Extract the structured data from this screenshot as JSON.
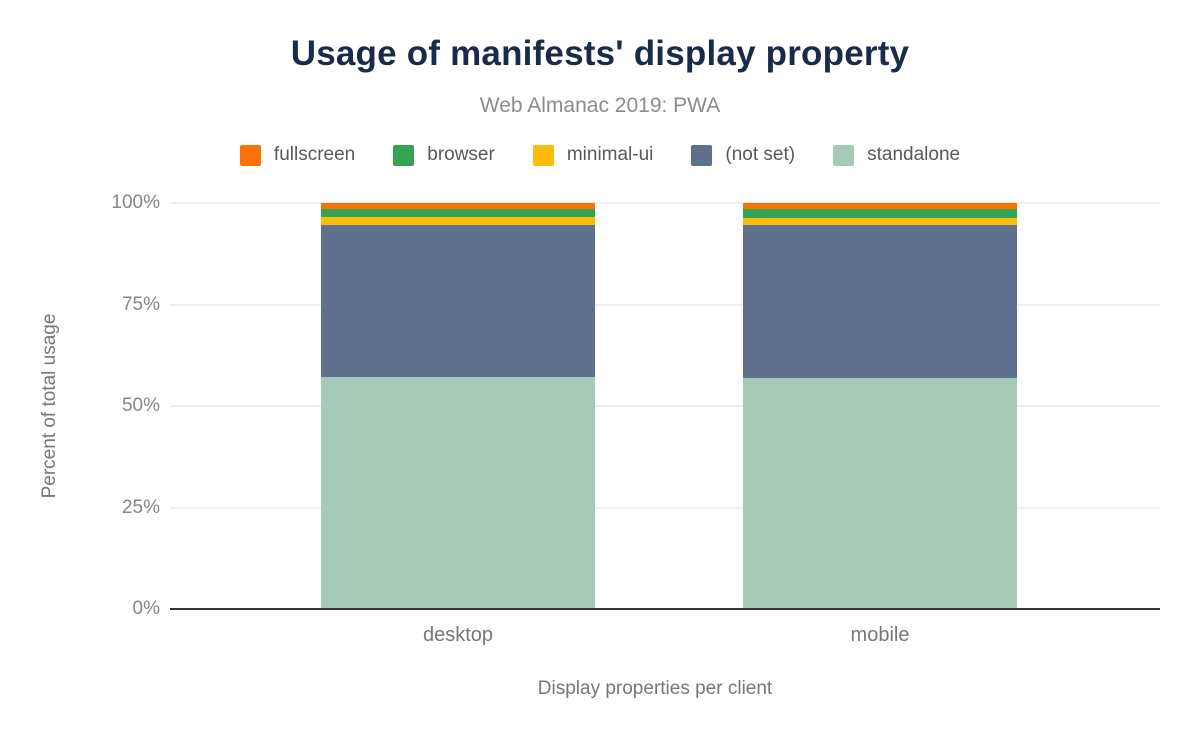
{
  "title": "Usage of manifests' display property",
  "subtitle": "Web Almanac 2019: PWA",
  "chart_data": {
    "type": "bar",
    "stacked": true,
    "stack_note": "series listed top-to-bottom as rendered in each bar; legend shown left-to-right in same order",
    "categories": [
      "desktop",
      "mobile"
    ],
    "series": [
      {
        "name": "fullscreen",
        "color": "#f97305",
        "values": [
          1.5,
          1.5
        ]
      },
      {
        "name": "browser",
        "color": "#34a353",
        "values": [
          2.0,
          2.2
        ]
      },
      {
        "name": "minimal-ui",
        "color": "#fbbd09",
        "values": [
          2.0,
          1.7
        ]
      },
      {
        "name": "(not set)",
        "color": "#5f708c",
        "values": [
          37.3,
          37.8
        ]
      },
      {
        "name": "standalone",
        "color": "#a7c9b8",
        "values": [
          57.2,
          56.8
        ]
      }
    ],
    "xlabel": "Display properties per client",
    "ylabel": "Percent of total usage",
    "yticks": [
      {
        "label": "0%",
        "value": 0
      },
      {
        "label": "25%",
        "value": 25
      },
      {
        "label": "50%",
        "value": 50
      },
      {
        "label": "75%",
        "value": 75
      },
      {
        "label": "100%",
        "value": 100
      }
    ],
    "ylim": [
      0,
      100
    ],
    "grid": "horizontal",
    "legend_position": "top"
  },
  "colors": {
    "title_text": "#1a2b49",
    "subtitle_text": "#8b8b8b",
    "axis_text": "#777777",
    "tick_text": "#868686",
    "gridline": "#efefef",
    "axis_line": "#333333",
    "background": "#ffffff"
  }
}
